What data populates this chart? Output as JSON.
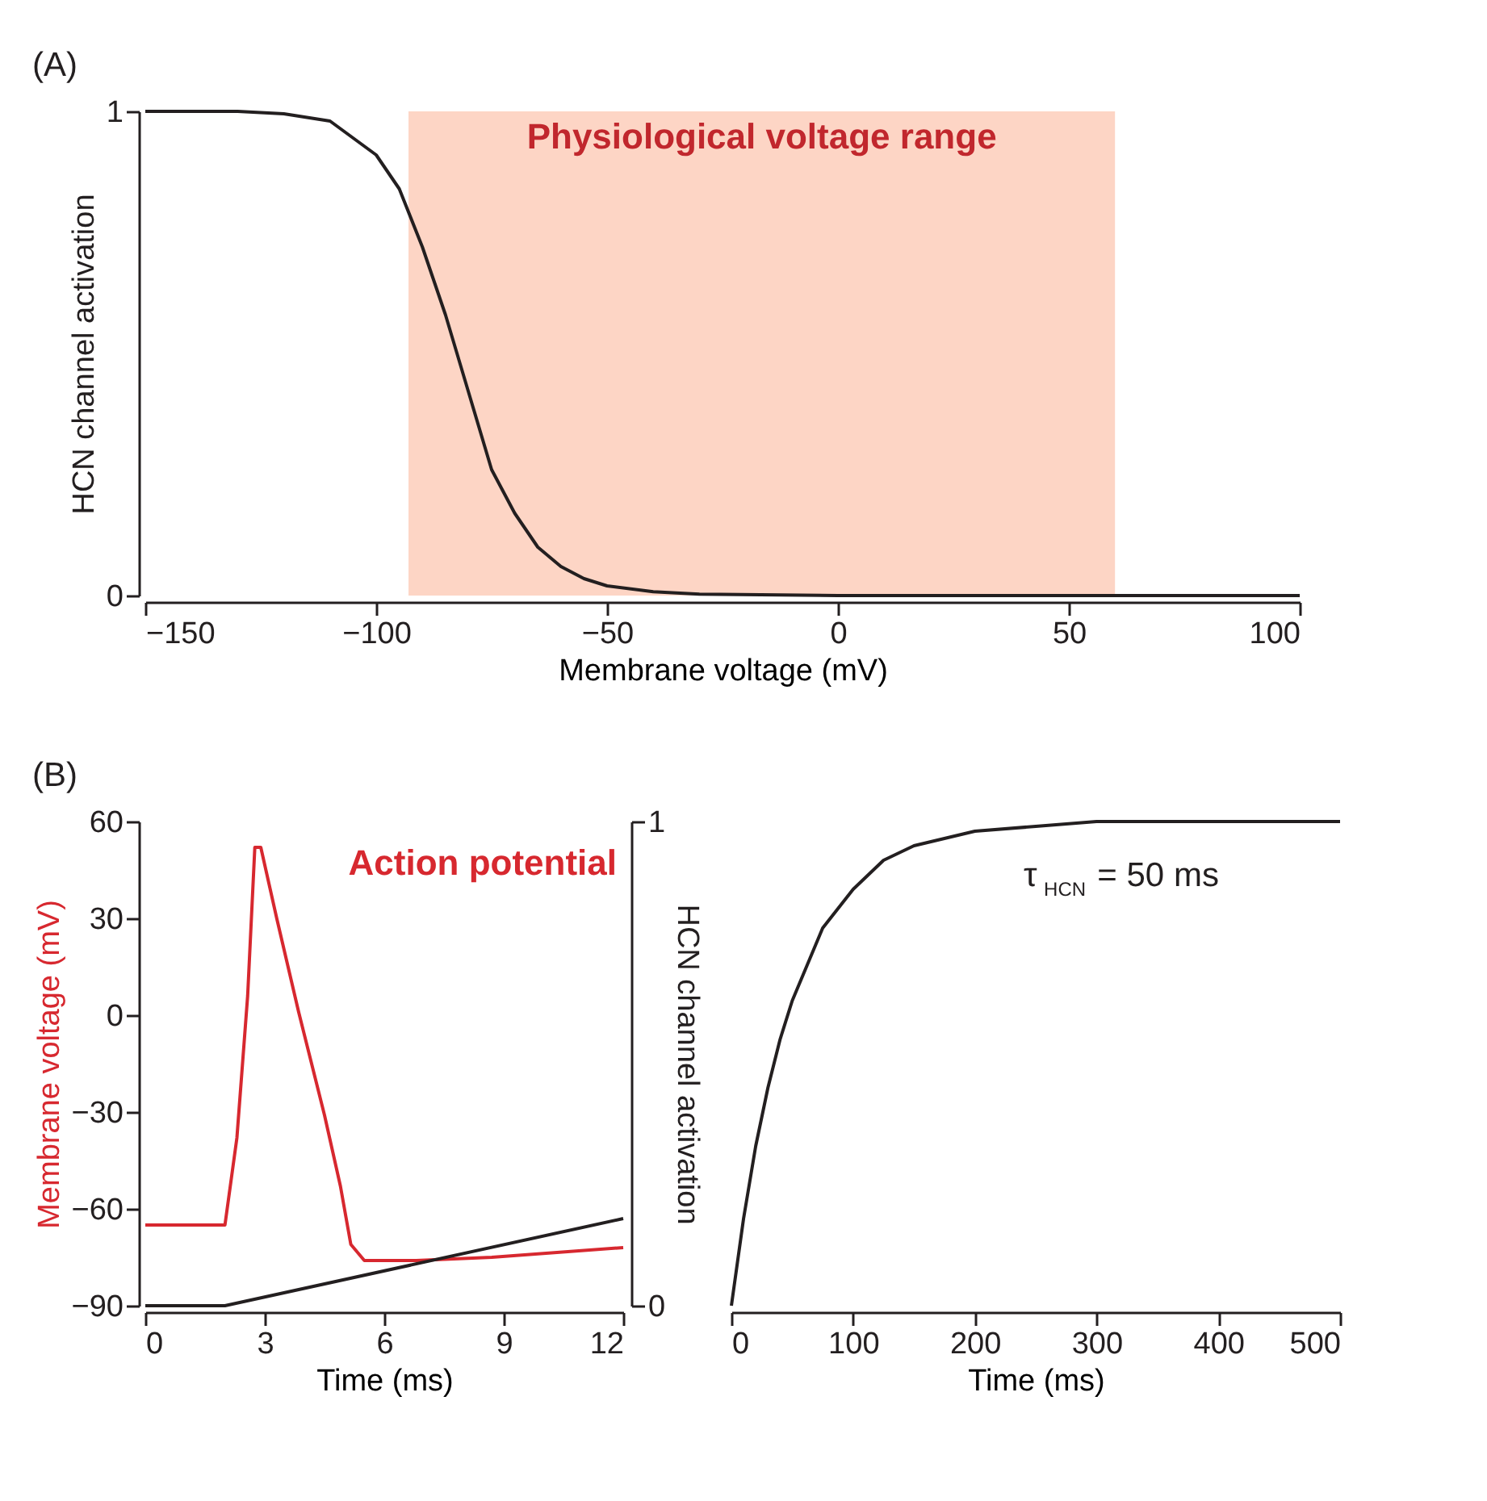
{
  "chart_data": [
    {
      "type": "line",
      "x": [
        -150,
        -130,
        -120,
        -110,
        -100,
        -95,
        -90,
        -85,
        -82.5,
        -80,
        -75,
        -70,
        -65,
        -60,
        -55,
        -50,
        -40,
        -30,
        0,
        50,
        100
      ],
      "values": [
        1,
        1,
        0.995,
        0.98,
        0.91,
        0.84,
        0.72,
        0.58,
        0.5,
        0.42,
        0.26,
        0.17,
        0.1,
        0.06,
        0.035,
        0.02,
        0.008,
        0.003,
        0,
        0,
        0
      ],
      "color": "#231f20",
      "xlim": [
        -150,
        100
      ],
      "ylim": [
        0,
        1
      ],
      "xticks": [
        -150,
        -100,
        -50,
        0,
        50,
        100
      ],
      "yticks": [
        0,
        1
      ],
      "xlabel": "Membrane voltage (mV)",
      "ylabel": "HCN channel activation",
      "grid": false,
      "line_style": "solid",
      "bands": [
        {
          "axis": "x",
          "from": -93,
          "to": 60,
          "label": "Physiological voltage range",
          "color": "#fdd5c5"
        }
      ],
      "annotations": [
        "(A)"
      ]
    },
    {
      "type": "line",
      "xlim": [
        0,
        12
      ],
      "xticks": [
        0,
        3,
        6,
        9,
        12
      ],
      "ylim": [
        -90,
        60
      ],
      "yticks": [
        -90,
        -60,
        -30,
        0,
        30,
        60
      ],
      "y2lim": [
        0,
        1
      ],
      "y2ticks": [
        0,
        1
      ],
      "xlabel": "Time (ms)",
      "ylabel": "Membrane voltage (mV)",
      "y2label": "HCN channel activation",
      "grid": false,
      "line_style": "solid",
      "series": [
        {
          "name": "Action potential",
          "color": "#d7282f",
          "x": [
            0,
            2,
            2.3,
            2.57,
            2.75,
            2.9,
            3.3,
            3.85,
            4.5,
            4.9,
            5.16,
            5.5,
            6.8,
            8.7,
            12
          ],
          "values": [
            -65,
            -65,
            -38,
            6,
            52,
            52,
            30,
            1,
            -31,
            -53,
            -71,
            -76,
            -76,
            -75,
            -72
          ]
        },
        {
          "color": "#231f20",
          "axis": "y2",
          "x": [
            0,
            2,
            12
          ],
          "values": [
            0,
            0,
            0.18
          ]
        }
      ],
      "annotations": [
        "(B)"
      ]
    },
    {
      "type": "line",
      "x": [
        0,
        10,
        20,
        30,
        40,
        50,
        75,
        100,
        125,
        150,
        200,
        250,
        300,
        400,
        500
      ],
      "values": [
        0,
        0.18,
        0.33,
        0.45,
        0.55,
        0.63,
        0.78,
        0.86,
        0.92,
        0.95,
        0.98,
        0.99,
        1,
        1,
        1
      ],
      "color": "#231f20",
      "xlim": [
        0,
        500
      ],
      "ylim": [
        0,
        1
      ],
      "xticks": [
        0,
        100,
        200,
        300,
        400,
        500
      ],
      "yticks": [
        0,
        1
      ],
      "xlabel": "Time (ms)",
      "tick_labels": "x",
      "grid": false,
      "line_style": "solid",
      "annotations": [
        "τ$_{HCN}$ = 50 ms"
      ]
    }
  ]
}
